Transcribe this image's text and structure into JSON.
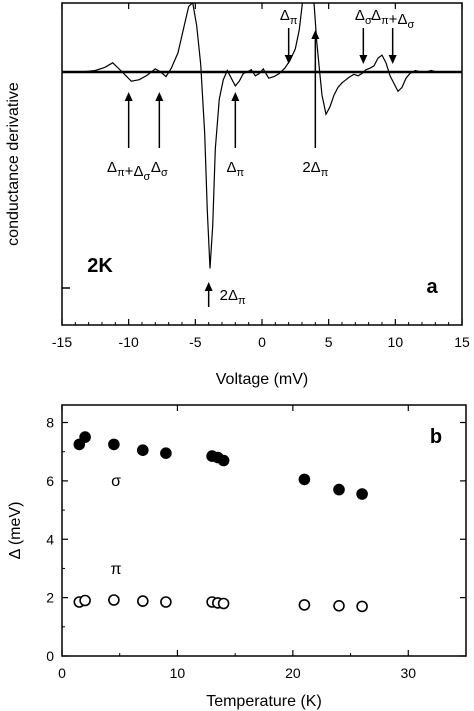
{
  "chart_data": [
    {
      "type": "line",
      "panel": "a",
      "xlabel": "Voltage (mV)",
      "ylabel": "conductance derivative",
      "xlim": [
        -15,
        15
      ],
      "x_ticks": [
        "-15",
        "-10",
        "-5",
        "0",
        "5",
        "10",
        "15"
      ],
      "y_ticks": "none (unitless)",
      "temperature_label": "2K",
      "panel_label": "a",
      "series": [
        {
          "x": [
            -13.5,
            -12.5,
            -11.8,
            -11.2,
            -10.6,
            -10.2,
            -9.8,
            -9.2,
            -8.6,
            -8.0,
            -7.6,
            -7.2,
            -6.8,
            -6.3,
            -5.9,
            -5.5,
            -5.2,
            -4.9,
            -4.6,
            -4.3,
            -4.1,
            -3.9,
            -3.7,
            -3.5,
            -3.2,
            -2.9,
            -2.6,
            -2.3,
            -2.0,
            -1.7,
            -1.4,
            -1.1,
            -0.8,
            -0.5,
            -0.2,
            0.1,
            0.5,
            0.9,
            1.3,
            1.7,
            2.1,
            2.5,
            2.8,
            3.1,
            3.3,
            3.5,
            3.7,
            3.9,
            4.1,
            4.3,
            4.5,
            4.8,
            5.1,
            5.4,
            5.7,
            6.0,
            6.3,
            6.6,
            6.9,
            7.2,
            7.5,
            7.8,
            8.1,
            8.4,
            8.7,
            9.0,
            9.3,
            9.6,
            9.9,
            10.2,
            10.5,
            10.8,
            11.1,
            11.5,
            11.9,
            12.3,
            12.7,
            13.1,
            13.5
          ],
          "y": [
            0,
            0.02,
            0.06,
            0.12,
            0.02,
            -0.05,
            -0.12,
            -0.1,
            -0.04,
            0.04,
            0.0,
            -0.06,
            0.05,
            0.25,
            0.55,
            0.85,
            0.9,
            0.6,
            0.1,
            -0.8,
            -1.8,
            -2.55,
            -2.0,
            -1.0,
            -0.35,
            -0.1,
            0.02,
            -0.08,
            -0.18,
            -0.12,
            -0.02,
            0.0,
            0.03,
            -0.05,
            -0.02,
            0.04,
            -0.08,
            -0.06,
            -0.02,
            0.05,
            0.15,
            0.3,
            0.55,
            1.0,
            1.35,
            1.7,
            1.45,
            0.9,
            0.4,
            0.05,
            -0.3,
            -0.55,
            -0.45,
            -0.3,
            -0.2,
            -0.14,
            -0.1,
            -0.06,
            -0.03,
            -0.05,
            -0.02,
            0.03,
            0.05,
            0.08,
            0.18,
            0.22,
            0.12,
            -0.05,
            -0.15,
            -0.25,
            -0.2,
            -0.08,
            -0.02,
            0.02,
            0.0,
            0.0,
            0.02,
            0.0,
            0.0
          ]
        }
      ],
      "annotations": [
        {
          "text": "Δπ+Δσ",
          "x": -10,
          "arrow": "up",
          "side": "below"
        },
        {
          "text": "Δσ",
          "x": -7.7,
          "arrow": "up",
          "side": "below"
        },
        {
          "text": "2Δπ",
          "x": -4.0,
          "arrow": "up",
          "side": "bottom"
        },
        {
          "text": "Δπ",
          "x": -2.0,
          "arrow": "up",
          "side": "below"
        },
        {
          "text": "Δπ",
          "x": 2.0,
          "arrow": "down",
          "side": "above"
        },
        {
          "text": "2Δπ",
          "x": 4.0,
          "arrow": "up",
          "side": "below"
        },
        {
          "text": "Δσ",
          "x": 7.6,
          "arrow": "down",
          "side": "above"
        },
        {
          "text": "Δπ+Δσ",
          "x": 9.8,
          "arrow": "down",
          "side": "above"
        }
      ]
    },
    {
      "type": "scatter",
      "panel": "b",
      "xlabel": "Temperature (K)",
      "ylabel": "Δ (meV)",
      "xlim": [
        0,
        35
      ],
      "ylim": [
        0,
        8.6
      ],
      "x_ticks": [
        "0",
        "10",
        "20",
        "30"
      ],
      "y_ticks": [
        "0",
        "2",
        "4",
        "6",
        "8"
      ],
      "panel_label": "b",
      "series": [
        {
          "name": "σ",
          "marker": "filled-circle",
          "x": [
            1.5,
            2.0,
            4.5,
            7.0,
            9.0,
            13.0,
            13.5,
            14.0,
            21.0,
            24.0,
            26.0
          ],
          "y": [
            7.25,
            7.5,
            7.25,
            7.05,
            6.95,
            6.85,
            6.8,
            6.7,
            6.05,
            5.7,
            5.55
          ]
        },
        {
          "name": "π",
          "marker": "open-circle",
          "x": [
            1.5,
            2.0,
            4.5,
            7.0,
            9.0,
            13.0,
            13.5,
            14.0,
            21.0,
            24.0,
            26.0
          ],
          "y": [
            1.85,
            1.9,
            1.92,
            1.88,
            1.85,
            1.85,
            1.82,
            1.8,
            1.75,
            1.72,
            1.7
          ]
        }
      ]
    }
  ]
}
